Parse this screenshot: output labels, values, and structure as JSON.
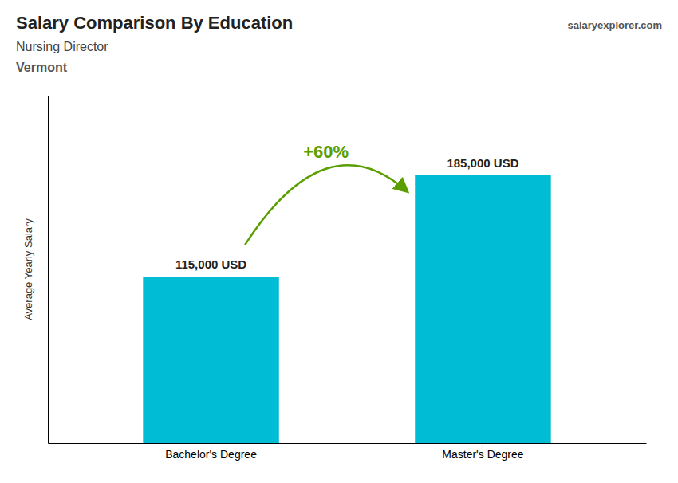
{
  "chart_data": {
    "type": "bar",
    "title": "Salary Comparison By Education",
    "subtitle": "Nursing Director",
    "annotations": [
      "Vermont",
      "salaryexplorer.com",
      "+60%"
    ],
    "ylabel": "Average Yearly Salary",
    "categories": [
      "Bachelor's Degree",
      "Master's Degree"
    ],
    "values": [
      115000,
      185000
    ],
    "value_labels": [
      "115,000 USD",
      "185,000 USD"
    ],
    "color": "#00bcd4",
    "ylim": [
      0,
      240000
    ],
    "tick_labels": "x",
    "data_labels": true,
    "grid": false
  }
}
